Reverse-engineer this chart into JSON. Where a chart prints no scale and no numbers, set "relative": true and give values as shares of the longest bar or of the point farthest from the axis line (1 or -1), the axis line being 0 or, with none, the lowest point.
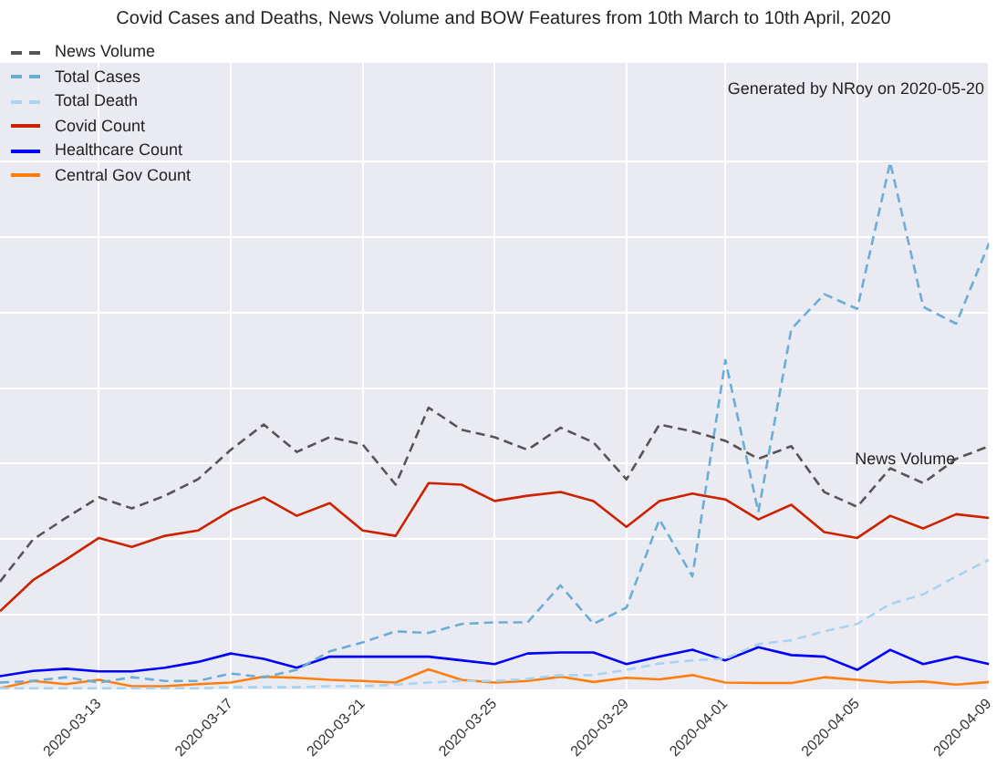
{
  "chart_data": {
    "type": "line",
    "title": "Covid Cases and Deaths, News Volume and BOW Features from 10th March to 10th April, 2020",
    "relative": true,
    "grid": true,
    "legend": "top left",
    "marker": "none",
    "x": [
      "2020-03-10",
      "2020-03-11",
      "2020-03-12",
      "2020-03-13",
      "2020-03-14",
      "2020-03-15",
      "2020-03-16",
      "2020-03-17",
      "2020-03-18",
      "2020-03-19",
      "2020-03-20",
      "2020-03-21",
      "2020-03-22",
      "2020-03-23",
      "2020-03-24",
      "2020-03-25",
      "2020-03-26",
      "2020-03-27",
      "2020-03-28",
      "2020-03-29",
      "2020-03-30",
      "2020-03-31",
      "2020-04-01",
      "2020-04-02",
      "2020-04-03",
      "2020-04-04",
      "2020-04-05",
      "2020-04-06",
      "2020-04-07",
      "2020-04-08",
      "2020-04-09"
    ],
    "xlim": [
      "2020-03-10",
      "2020-04-09"
    ],
    "xticks": [
      "2020-03-13",
      "2020-03-17",
      "2020-03-21",
      "2020-03-25",
      "2020-03-29",
      "2020-04-01",
      "2020-04-05",
      "2020-04-09"
    ],
    "series": [
      {
        "name": "News Volume",
        "color": "#555555",
        "line_style": "dashed",
        "values": [
          0.205,
          0.285,
          0.326,
          0.365,
          0.344,
          0.368,
          0.399,
          0.455,
          0.503,
          0.451,
          0.479,
          0.465,
          0.389,
          0.535,
          0.493,
          0.479,
          0.455,
          0.497,
          0.469,
          0.399,
          0.503,
          0.49,
          0.472,
          0.438,
          0.462,
          0.375,
          0.347,
          0.42,
          0.392,
          0.438,
          0.462
        ]
      },
      {
        "name": "Total Cases",
        "color": "#6aaed6",
        "line_style": "dashed",
        "values": [
          0.014,
          0.017,
          0.024,
          0.014,
          0.024,
          0.017,
          0.017,
          0.031,
          0.024,
          0.038,
          0.073,
          0.09,
          0.111,
          0.108,
          0.125,
          0.128,
          0.128,
          0.198,
          0.125,
          0.156,
          0.323,
          0.215,
          0.625,
          0.337,
          0.684,
          0.75,
          0.722,
          1.0,
          0.726,
          0.694,
          0.847
        ]
      },
      {
        "name": "Total Death",
        "color": "#a6d4f2",
        "line_style": "dashed",
        "values": [
          0.003,
          0.003,
          0.003,
          0.003,
          0.003,
          0.003,
          0.003,
          0.005,
          0.005,
          0.005,
          0.007,
          0.007,
          0.01,
          0.014,
          0.017,
          0.017,
          0.021,
          0.028,
          0.028,
          0.038,
          0.05,
          0.056,
          0.059,
          0.087,
          0.094,
          0.111,
          0.125,
          0.163,
          0.181,
          0.215,
          0.247
        ]
      },
      {
        "name": "Covid Count",
        "color": "#cc2200",
        "line_style": "solid",
        "values": [
          0.149,
          0.208,
          0.247,
          0.288,
          0.271,
          0.292,
          0.302,
          0.34,
          0.365,
          0.33,
          0.354,
          0.302,
          0.292,
          0.392,
          0.389,
          0.358,
          0.368,
          0.375,
          0.358,
          0.309,
          0.358,
          0.372,
          0.361,
          0.323,
          0.351,
          0.299,
          0.288,
          0.33,
          0.306,
          0.333,
          0.326
        ]
      },
      {
        "name": "Healthcare Count",
        "color": "#0000ff",
        "line_style": "solid",
        "values": [
          0.026,
          0.036,
          0.04,
          0.035,
          0.035,
          0.042,
          0.053,
          0.069,
          0.059,
          0.042,
          0.063,
          0.063,
          0.063,
          0.063,
          0.056,
          0.049,
          0.069,
          0.071,
          0.071,
          0.049,
          0.063,
          0.076,
          0.056,
          0.081,
          0.066,
          0.063,
          0.038,
          0.076,
          0.049,
          0.063,
          0.049
        ]
      },
      {
        "name": "Central Gov Count",
        "color": "#ff7f0e",
        "line_style": "solid",
        "values": [
          0.003,
          0.017,
          0.011,
          0.019,
          0.007,
          0.007,
          0.011,
          0.014,
          0.025,
          0.023,
          0.019,
          0.017,
          0.014,
          0.039,
          0.019,
          0.014,
          0.017,
          0.025,
          0.015,
          0.023,
          0.02,
          0.028,
          0.014,
          0.013,
          0.013,
          0.024,
          0.019,
          0.014,
          0.016,
          0.01,
          0.015
        ]
      }
    ],
    "annotations": [
      "News Volume",
      "Generated by NRoy on 2020-05-20"
    ]
  }
}
